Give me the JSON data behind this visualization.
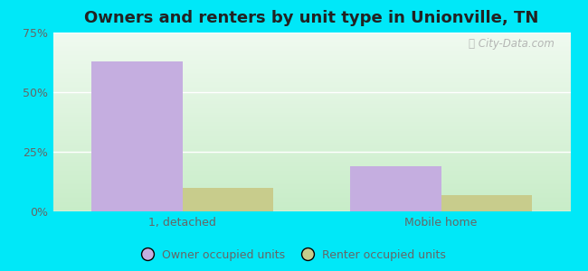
{
  "title": "Owners and renters by unit type in Unionville, TN",
  "categories": [
    "1, detached",
    "Mobile home"
  ],
  "owner_values": [
    63,
    19
  ],
  "renter_values": [
    10,
    7
  ],
  "owner_color": "#c5aee0",
  "renter_color": "#c8cc8c",
  "bar_width": 0.35,
  "ylim": [
    0,
    75
  ],
  "yticks": [
    0,
    25,
    50,
    75
  ],
  "yticklabels": [
    "0%",
    "25%",
    "50%",
    "75%"
  ],
  "background_outer": "#00e8f8",
  "bg_top_color": "#f0faf0",
  "bg_bottom_color": "#c8edc8",
  "title_fontsize": 13,
  "tick_fontsize": 9,
  "legend_label_owner": "Owner occupied units",
  "legend_label_renter": "Renter occupied units",
  "watermark_text": "City-Data.com",
  "tick_color": "#666666",
  "grid_color": "#ffffff",
  "title_color": "#222222"
}
